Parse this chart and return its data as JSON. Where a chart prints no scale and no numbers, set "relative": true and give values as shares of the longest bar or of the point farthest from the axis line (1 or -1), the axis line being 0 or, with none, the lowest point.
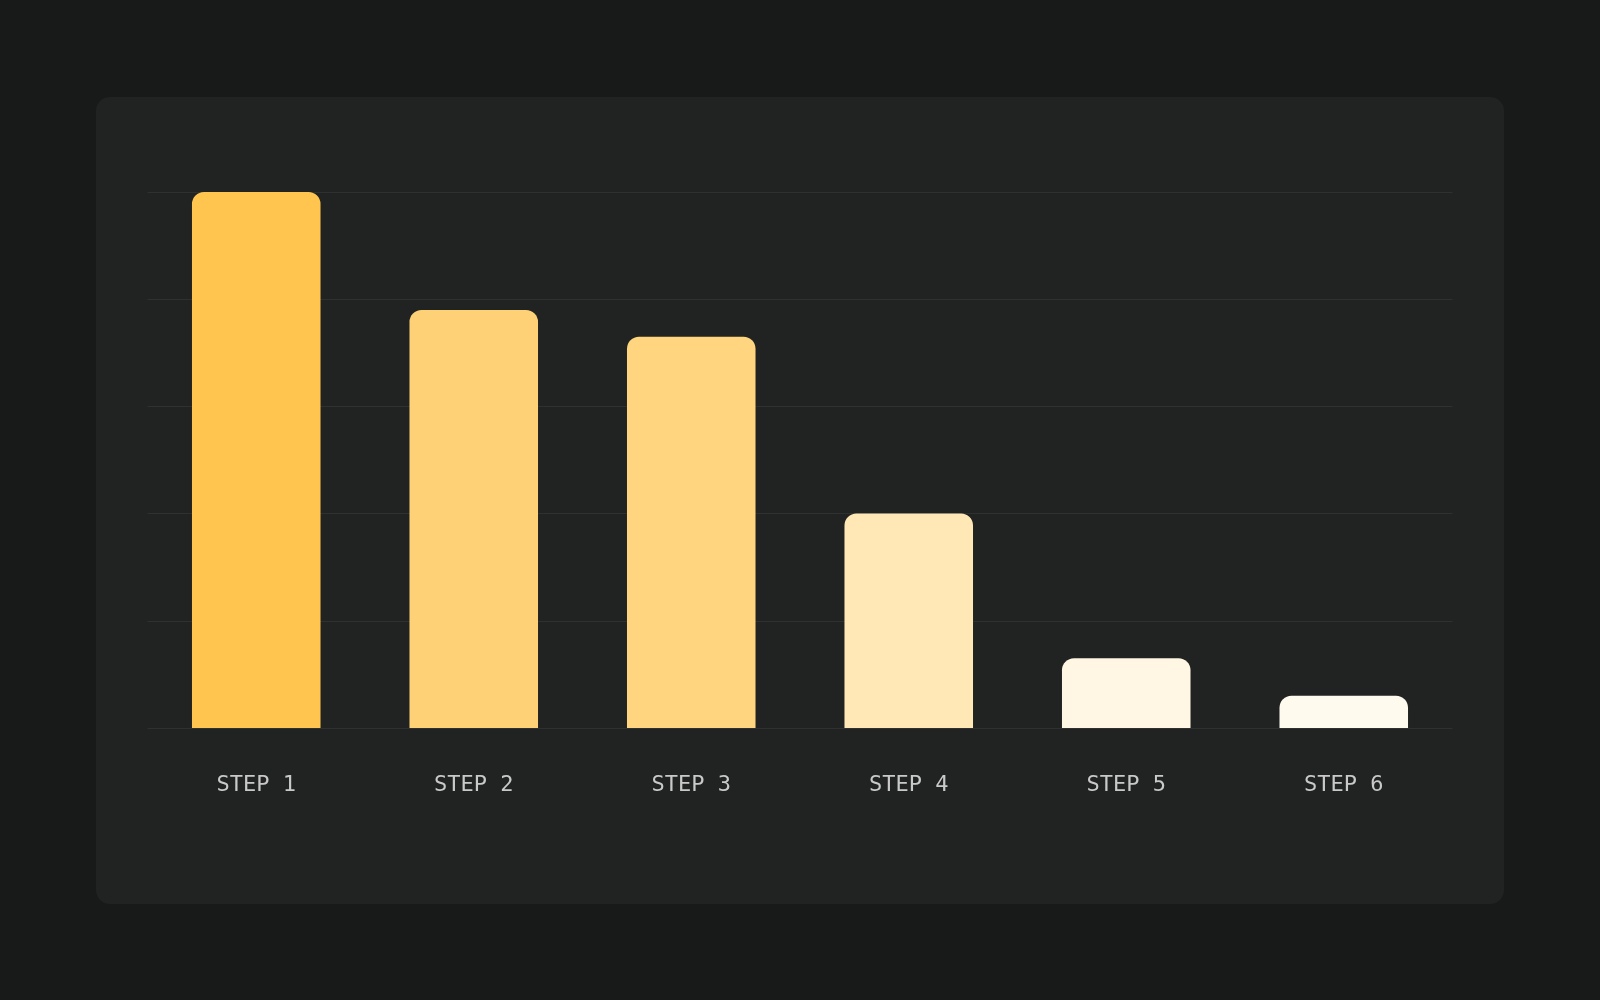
{
  "chart_data": {
    "type": "bar",
    "categories": [
      "STEP 1",
      "STEP 2",
      "STEP 3",
      "STEP 4",
      "STEP 5",
      "STEP 6"
    ],
    "values": [
      1,
      0.78,
      0.73,
      0.4,
      0.13,
      0.06
    ],
    "colors": [
      "#ffc54e",
      "#ffd176",
      "#ffd67f",
      "#ffe8b6",
      "#fff6e3",
      "#fffaee"
    ],
    "relative": true,
    "grid": "y"
  }
}
